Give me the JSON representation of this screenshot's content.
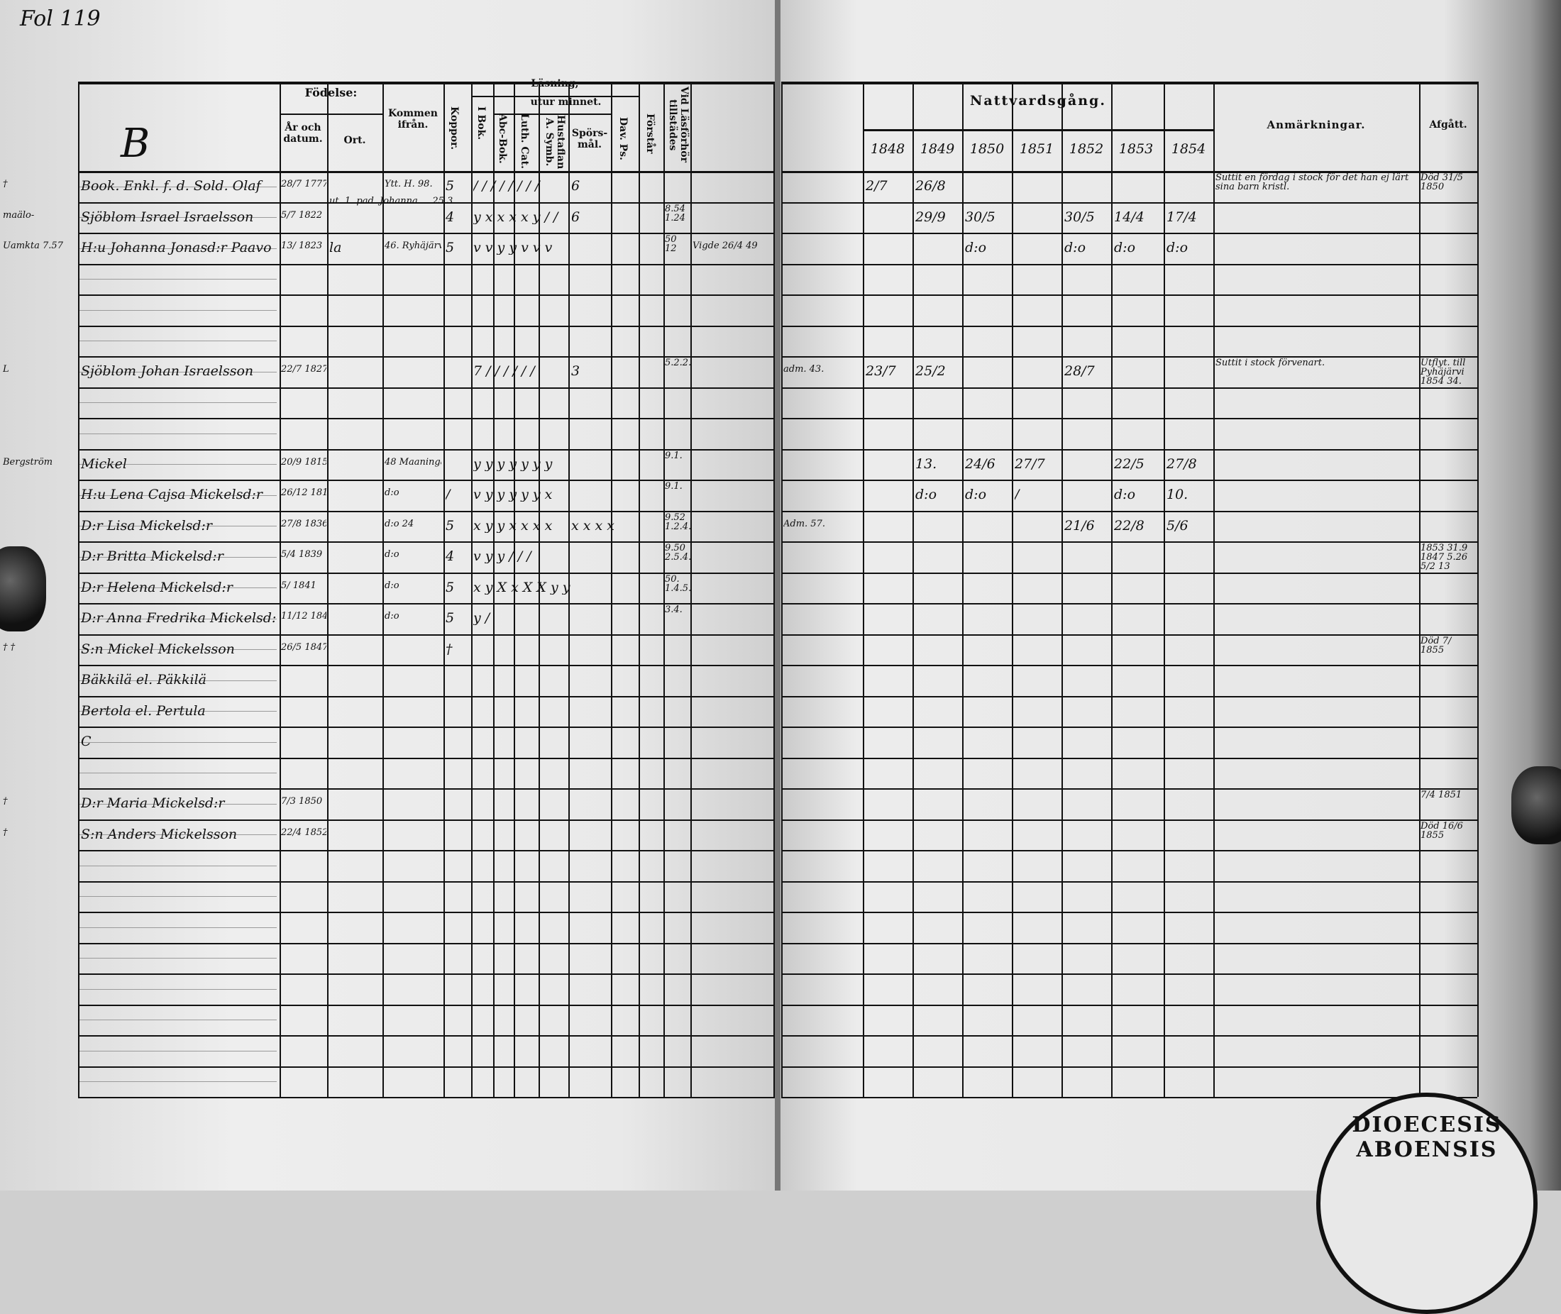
{
  "folio": "Fol 119",
  "left_header": {
    "section_letter": "B",
    "fodelse": "Födelse:",
    "ar_och_datum": "År och datum.",
    "ort": "Ort.",
    "kommen_ifran": "Kommen ifrån.",
    "koppor": "Koppor.",
    "lasning": "Läsning,",
    "utur_minnet": "utur minnet.",
    "i_bok": "I Bok.",
    "abc_bok": "Abc-Bok.",
    "luth_cat": "Luth. Cat.",
    "hustaflan": "Hustaflan A. Symb.",
    "sporsmal": "Spörs-mål.",
    "dav_ps": "Dav. Ps.",
    "forstar": "Förstår",
    "vid_lasforhor": "Vid Läsförhör tillstädes"
  },
  "right_header": {
    "nattvardsgang": "Nattvardsgång.",
    "years": [
      "1848",
      "1849",
      "1850",
      "1851",
      "1852",
      "1853",
      "1854"
    ],
    "anmarkningar": "Anmärkningar.",
    "afgatt": "Afgått."
  },
  "rows": [
    {
      "margin": "†",
      "name": "Book. Enkl. f. d. Sold. Olaf",
      "born": "28/7 1777",
      "kommen": "Ytt. H. 98.",
      "koppor": "5",
      "reading": "/ / / / / / / /",
      "spors": "6",
      "vid": "",
      "y1848": "2/7",
      "y1849": "26/8",
      "anm": "Suttit en fördag i stock för det han ej lärt sina barn kristl.",
      "afgatt": "Död 31/5 1850"
    },
    {
      "margin": "maälo-",
      "name": "Sjöblom Israel Israelsson",
      "born": "5/7 1822",
      "note": "ut. 1. pad. Johanna ... 25.3.",
      "koppor": "4",
      "reading": "y x x x x y / /",
      "spors": "6",
      "vid": "8.54 1.24",
      "y1849": "29/9",
      "y1850": "30/5",
      "y1852": "30/5",
      "y1853": "14/4",
      "y1854": "17/4"
    },
    {
      "margin": "Uamkta 7.57",
      "name": "H:u Johanna Jonasd:r Paavo",
      "born": "13/ 1823",
      "ort": "la",
      "kommen": "46. Ryhäjärvi",
      "koppor": "5",
      "reading": "v v y y v v v",
      "vid": "50 12",
      "extra": "Vigde 26/4 49",
      "y1850": "d:o",
      "y1852": "d:o",
      "y1853": "d:o",
      "y1854": "d:o"
    },
    {},
    {},
    {},
    {
      "margin": "L",
      "name": "Sjöblom Johan Israelsson",
      "born": "22/7 1827",
      "reading": "7 / / / / / /",
      "spors": "3",
      "vid": "5.2.2.",
      "adm": "adm. 43.",
      "y1848": "23/7",
      "y1849": "25/2",
      "y1852": "28/7",
      "anm": "Suttit i stock förvenart.",
      "afgatt": "Utflyt. till Pyhäjärvi 1854 34."
    },
    {},
    {},
    {
      "margin": "Bergström",
      "name": "Mickel",
      "born": "20/9 1815",
      "kommen": "48 Maaninga",
      "reading": "y y y y y y y",
      "vid": "9.1.",
      "y1849": "13.",
      "y1850": "24/6",
      "y1851": "27/7",
      "y1853": "22/5",
      "y1854": "27/8"
    },
    {
      "name": "H:u Lena Cajsa Mickelsd:r",
      "born": "26/12 1810",
      "kommen": "d:o",
      "koppor": "/",
      "reading": "v y y y y y x",
      "vid": "9.1.",
      "y1849": "d:o",
      "y1850": "d:o",
      "y1851": "/",
      "y1853": "d:o",
      "y1854": "10."
    },
    {
      "name": "D:r Lisa Mickelsd:r",
      "born": "27/8 1836",
      "kommen": "d:o 24",
      "koppor": "5",
      "reading": "x y y x x x x",
      "spors": "x x x x",
      "vid": "9.52 1.2.4.",
      "adm": "Adm. 57.",
      "y1852": "21/6",
      "y1853": "22/8",
      "y1854": "5/6"
    },
    {
      "name": "D:r Britta Mickelsd:r",
      "born": "5/4 1839",
      "kommen": "d:o",
      "koppor": "4",
      "reading": "v y y / / /",
      "vid": "9.50 2.5.4.",
      "afgatt": "1853 31.9 1847 5.26 5/2 13"
    },
    {
      "name": "D:r Helena Mickelsd:r",
      "born": "5/ 1841",
      "kommen": "d:o",
      "koppor": "5",
      "reading": "x y X x X X y y",
      "vid": "50. 1.4.5."
    },
    {
      "name": "D:r Anna Fredrika Mickelsd:r",
      "born": "11/12 1844",
      "kommen": "d:o",
      "koppor": "5",
      "reading": "y /",
      "vid": "3.4."
    },
    {
      "margin": "† †",
      "name": "S:n Mickel Mickelsson",
      "born": "26/5 1847",
      "koppor": "†",
      "afgatt": "Död 7/ 1855"
    },
    {
      "name": "Bäkkilä el. Päkkilä"
    },
    {
      "name": "Bertola el. Pertula"
    },
    {
      "name": "C"
    },
    {},
    {
      "margin": "†",
      "name": "D:r Maria Mickelsd:r",
      "born": "7/3 1850",
      "afgatt": "7/4 1851"
    },
    {
      "margin": "†",
      "name": "S:n Anders Mickelsson",
      "born": "22/4 1852",
      "afgatt": "Död 16/6 1855"
    },
    {},
    {},
    {},
    {},
    {},
    {},
    {},
    {}
  ],
  "seal": {
    "text": "DIOECESIS ABOENSIS"
  }
}
